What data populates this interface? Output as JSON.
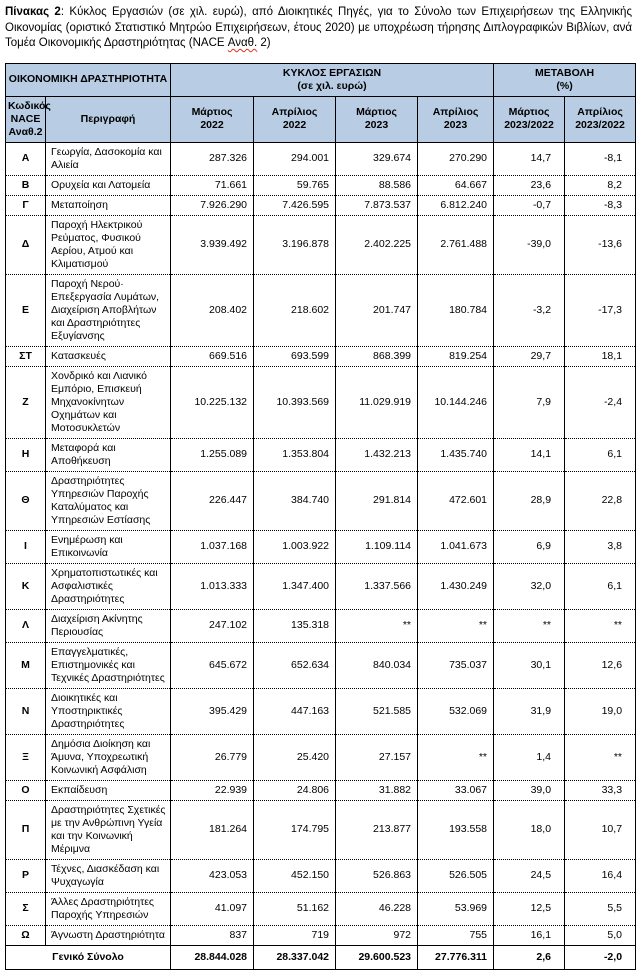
{
  "caption": {
    "label": "Πίνακας 2",
    "body": ": Κύκλος Εργασιών (σε χιλ. ευρώ), από Διοικητικές Πηγές, για το Σύνολο των Επιχειρήσεων της Ελληνικής Οικονομίας (οριστικό Στατιστικό Μητρώο Επιχειρήσεων, έτους 2020) με υποχρέωση τήρησης Διπλογραφικών Βιβλίων, ανά Τομέα Οικονομικής Δραστηριότητας (NACE ",
    "spellcheck_word": "Αναθ.",
    "tail": " 2)",
    "spellcheck_color": "#e0311f"
  },
  "header": {
    "activity": "ΟΙΚΟΝΟΜΙΚΗ ΔΡΑΣΤΗΡΙΟΤΗΤΑ",
    "turnover_l1": "ΚΥΚΛΟΣ ΕΡΓΑΣΙΩΝ",
    "turnover_l2": "(σε χιλ. ευρώ)",
    "change_l1": "ΜΕΤΑΒΟΛΗ",
    "change_l2": "(%)",
    "code_l1": "Κωδικός",
    "code_l2": "NACE",
    "code_l3": "Αναθ.2",
    "description": "Περιγραφή",
    "period_columns": [
      {
        "l1": "Μάρτιος",
        "l2": "2022"
      },
      {
        "l1": "Απρίλιος",
        "l2": "2022"
      },
      {
        "l1": "Μάρτιος",
        "l2": "2023"
      },
      {
        "l1": "Απρίλιος",
        "l2": "2023"
      },
      {
        "l1": "Μάρτιος",
        "l2": "2023/2022"
      },
      {
        "l1": "Απρίλιος",
        "l2": "2023/2022"
      }
    ],
    "header_fill": "#B8CCE4"
  },
  "rows": [
    {
      "code": "Α",
      "desc": "Γεωργία, Δασοκομία και Αλιεία",
      "values": [
        "287.326",
        "294.001",
        "329.674",
        "270.290",
        "14,7",
        "-8,1"
      ]
    },
    {
      "code": "Β",
      "desc": "Ορυχεία και Λατομεία",
      "values": [
        "71.661",
        "59.765",
        "88.586",
        "64.667",
        "23,6",
        "8,2"
      ]
    },
    {
      "code": "Γ",
      "desc": "Μεταποίηση",
      "values": [
        "7.926.290",
        "7.426.595",
        "7.873.537",
        "6.812.240",
        "-0,7",
        "-8,3"
      ]
    },
    {
      "code": "Δ",
      "desc": "Παροχή Ηλεκτρικού Ρεύματος, Φυσικού Αερίου, Ατμού και Κλιματισμού",
      "values": [
        "3.939.492",
        "3.196.878",
        "2.402.225",
        "2.761.488",
        "-39,0",
        "-13,6"
      ]
    },
    {
      "code": "Ε",
      "desc": "Παροχή Νερού· Επεξεργασία Λυμάτων, Διαχείριση Αποβλήτων και Δραστηριότητες Εξυγίανσης",
      "values": [
        "208.402",
        "218.602",
        "201.747",
        "180.784",
        "-3,2",
        "-17,3"
      ]
    },
    {
      "code": "ΣΤ",
      "desc": "Κατασκευές",
      "values": [
        "669.516",
        "693.599",
        "868.399",
        "819.254",
        "29,7",
        "18,1"
      ]
    },
    {
      "code": "Ζ",
      "desc": "Χονδρικό και Λιανικό Εμπόριο, Επισκευή Μηχανοκίνητων Οχημάτων και Μοτοσυκλετών",
      "values": [
        "10.225.132",
        "10.393.569",
        "11.029.919",
        "10.144.246",
        "7,9",
        "-2,4"
      ]
    },
    {
      "code": "Η",
      "desc": "Μεταφορά και Αποθήκευση",
      "values": [
        "1.255.089",
        "1.353.804",
        "1.432.213",
        "1.435.740",
        "14,1",
        "6,1"
      ]
    },
    {
      "code": "Θ",
      "desc": "Δραστηριότητες Υπηρεσιών Παροχής Καταλύματος και Υπηρεσιών Εστίασης",
      "values": [
        "226.447",
        "384.740",
        "291.814",
        "472.601",
        "28,9",
        "22,8"
      ]
    },
    {
      "code": "Ι",
      "desc": "Ενημέρωση και Επικοινωνία",
      "values": [
        "1.037.168",
        "1.003.922",
        "1.109.114",
        "1.041.673",
        "6,9",
        "3,8"
      ]
    },
    {
      "code": "Κ",
      "desc": "Χρηματοπιστωτικές και Ασφαλιστικές Δραστηριότητες",
      "values": [
        "1.013.333",
        "1.347.400",
        "1.337.566",
        "1.430.249",
        "32,0",
        "6,1"
      ]
    },
    {
      "code": "Λ",
      "desc": "Διαχείριση Ακίνητης Περιουσίας",
      "values": [
        "247.102",
        "135.318",
        "**",
        "**",
        "**",
        "**"
      ]
    },
    {
      "code": "Μ",
      "desc": "Επαγγελματικές, Επιστημονικές και Τεχνικές Δραστηριότητες",
      "values": [
        "645.672",
        "652.634",
        "840.034",
        "735.037",
        "30,1",
        "12,6"
      ]
    },
    {
      "code": "Ν",
      "desc": "Διοικητικές και Υποστηρικτικές Δραστηριότητες",
      "values": [
        "395.429",
        "447.163",
        "521.585",
        "532.069",
        "31,9",
        "19,0"
      ]
    },
    {
      "code": "Ξ",
      "desc": "Δημόσια Διοίκηση και Άμυνα, Υποχρεωτική Κοινωνική Ασφάλιση",
      "values": [
        "26.779",
        "25.420",
        "27.157",
        "**",
        "1,4",
        "**"
      ]
    },
    {
      "code": "Ο",
      "desc": "Εκπαίδευση",
      "values": [
        "22.939",
        "24.806",
        "31.882",
        "33.067",
        "39,0",
        "33,3"
      ]
    },
    {
      "code": "Π",
      "desc": "Δραστηριότητες Σχετικές με την Ανθρώπινη Υγεία και την Κοινωνική Μέριμνα",
      "values": [
        "181.264",
        "174.795",
        "213.877",
        "193.558",
        "18,0",
        "10,7"
      ]
    },
    {
      "code": "Ρ",
      "desc": "Τέχνες, Διασκέδαση και Ψυχαγωγία",
      "values": [
        "423.053",
        "452.150",
        "526.863",
        "526.505",
        "24,5",
        "16,4"
      ]
    },
    {
      "code": "Σ",
      "desc": "Άλλες Δραστηριότητες Παροχής Υπηρεσιών",
      "values": [
        "41.097",
        "51.162",
        "46.228",
        "53.969",
        "12,5",
        "5,5"
      ]
    },
    {
      "code": "Ω",
      "desc": "Άγνωστη Δραστηριότητα",
      "values": [
        "837",
        "719",
        "972",
        "755",
        "16,1",
        "5,0"
      ]
    }
  ],
  "total": {
    "label": "Γενικό Σύνολο",
    "values": [
      "28.844.028",
      "28.337.042",
      "29.600.523",
      "27.776.311",
      "2,6",
      "-2,0"
    ]
  }
}
